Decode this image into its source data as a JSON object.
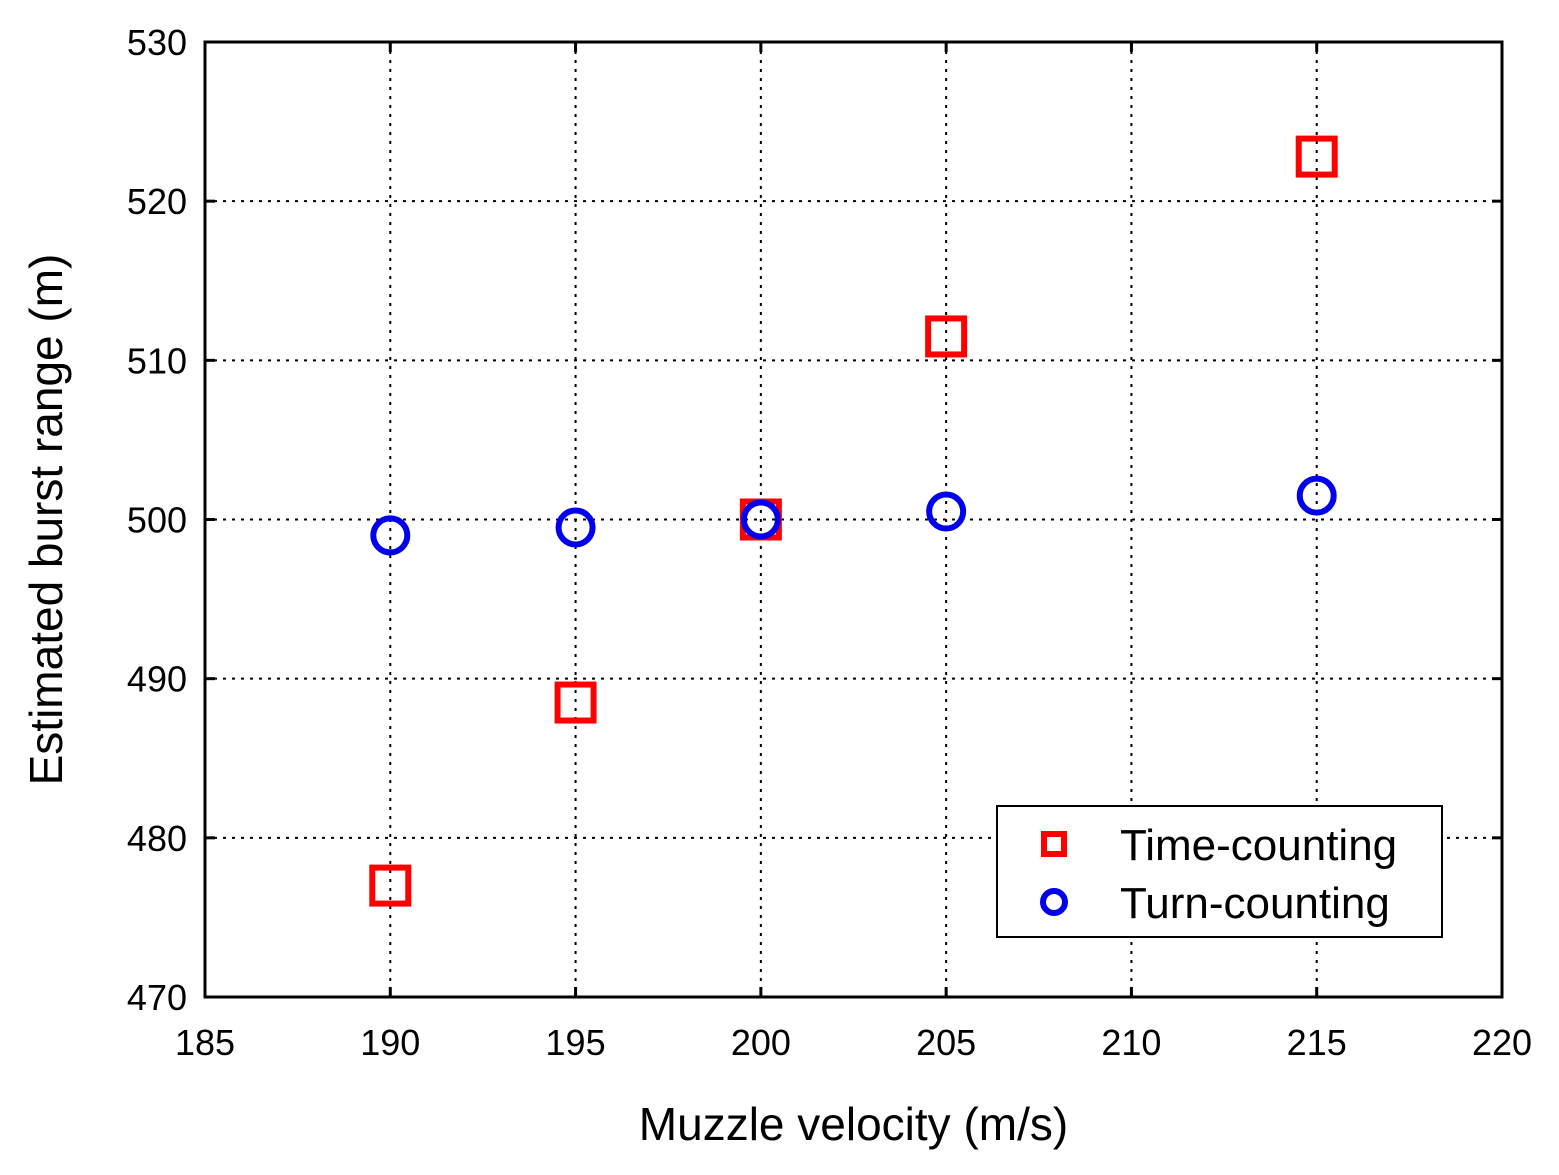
{
  "chart_data": {
    "type": "scatter",
    "xlabel": "Muzzle velocity (m/s)",
    "ylabel": "Estimated burst range (m)",
    "xlim": [
      185,
      220
    ],
    "ylim": [
      470,
      530
    ],
    "xticks": [
      185,
      190,
      195,
      200,
      205,
      210,
      215,
      220
    ],
    "yticks": [
      470,
      480,
      490,
      500,
      510,
      520,
      530
    ],
    "grid": true,
    "legend_position": "lower-right",
    "series": [
      {
        "name": "Time-counting",
        "marker": "square",
        "color": "#ff0000",
        "x": [
          190,
          195,
          200,
          205,
          215
        ],
        "y": [
          477.0,
          488.5,
          500.0,
          511.5,
          522.8
        ]
      },
      {
        "name": "Turn-counting",
        "marker": "circle",
        "color": "#0000ee",
        "x": [
          190,
          195,
          200,
          205,
          215
        ],
        "y": [
          499.0,
          499.5,
          500.0,
          500.5,
          501.5
        ]
      }
    ]
  }
}
